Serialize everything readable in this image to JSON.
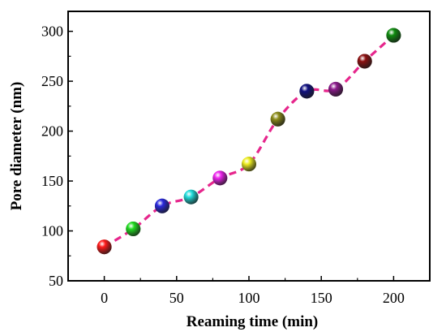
{
  "chart_data": {
    "type": "scatter",
    "xlabel": "Reaming time (min)",
    "ylabel": "Pore diameter (nm)",
    "xlim": [
      -25,
      225
    ],
    "ylim": [
      50,
      320
    ],
    "x_ticks": [
      0,
      50,
      100,
      150,
      200
    ],
    "y_ticks": [
      50,
      100,
      150,
      200,
      250,
      300
    ],
    "grid": false,
    "legend": "none",
    "line_color": "#e6268c",
    "line_style": "dashed",
    "series": [
      {
        "points": [
          {
            "x": 0,
            "y": 84,
            "color": "#ff1a1a"
          },
          {
            "x": 20,
            "y": 102,
            "color": "#22dd22"
          },
          {
            "x": 40,
            "y": 125,
            "color": "#2a2add"
          },
          {
            "x": 60,
            "y": 134,
            "color": "#22dddd"
          },
          {
            "x": 80,
            "y": 153,
            "color": "#ee22ee"
          },
          {
            "x": 100,
            "y": 167,
            "color": "#eeee22"
          },
          {
            "x": 120,
            "y": 212,
            "color": "#8c8c1a"
          },
          {
            "x": 140,
            "y": 240,
            "color": "#101080"
          },
          {
            "x": 160,
            "y": 242,
            "color": "#8c1a8c"
          },
          {
            "x": 180,
            "y": 270,
            "color": "#8c1010"
          },
          {
            "x": 200,
            "y": 296,
            "color": "#108c10"
          }
        ]
      }
    ]
  }
}
